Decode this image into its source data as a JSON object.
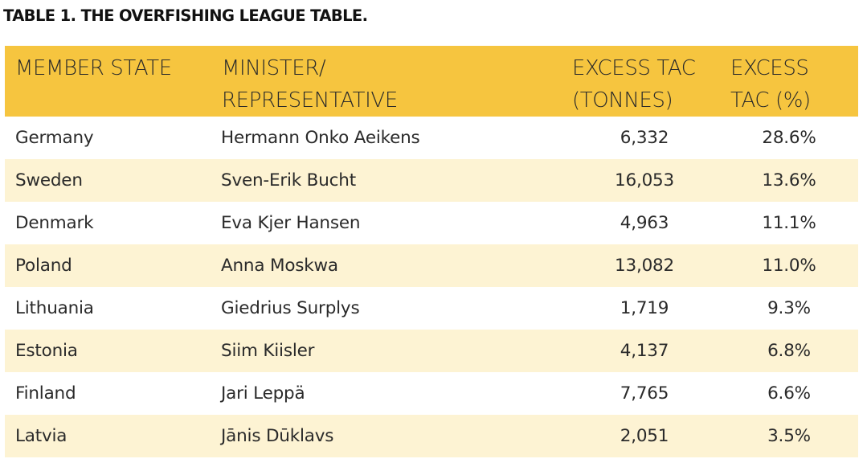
{
  "title": "TABLE 1. THE OVERFISHING LEAGUE TABLE.",
  "header": {
    "member_state": "MEMBER STATE",
    "minister_line1": "MINISTER/",
    "minister_line2": "REPRESENTATIVE",
    "tonnes_line1": "EXCESS TAC",
    "tonnes_line2": "(TONNES)",
    "pct_line1": "EXCESS",
    "pct_line2": "TAC (%)"
  },
  "rows": [
    {
      "state": "Germany",
      "minister": "Hermann Onko Aeikens",
      "tonnes": "6,332",
      "pct": "28.6%"
    },
    {
      "state": "Sweden",
      "minister": "Sven-Erik Bucht",
      "tonnes": "16,053",
      "pct": "13.6%"
    },
    {
      "state": "Denmark",
      "minister": "Eva Kjer Hansen",
      "tonnes": "4,963",
      "pct": "11.1%"
    },
    {
      "state": "Poland",
      "minister": "Anna Moskwa",
      "tonnes": "13,082",
      "pct": "11.0%"
    },
    {
      "state": "Lithuania",
      "minister": "Giedrius Surplys",
      "tonnes": "1,719",
      "pct": "9.3%"
    },
    {
      "state": "Estonia",
      "minister": "Siim Kiisler",
      "tonnes": "4,137",
      "pct": "6.8%"
    },
    {
      "state": "Finland",
      "minister": "Jari Leppä",
      "tonnes": "7,765",
      "pct": "6.6%"
    },
    {
      "state": "Latvia",
      "minister": "Jānis Dūklavs",
      "tonnes": "2,051",
      "pct": "3.5%"
    }
  ],
  "colors": {
    "header_bg": "#f6c53f",
    "alt_row_bg": "#fdf3d3",
    "row_bg": "#ffffff",
    "text": "#2a2a2a"
  }
}
